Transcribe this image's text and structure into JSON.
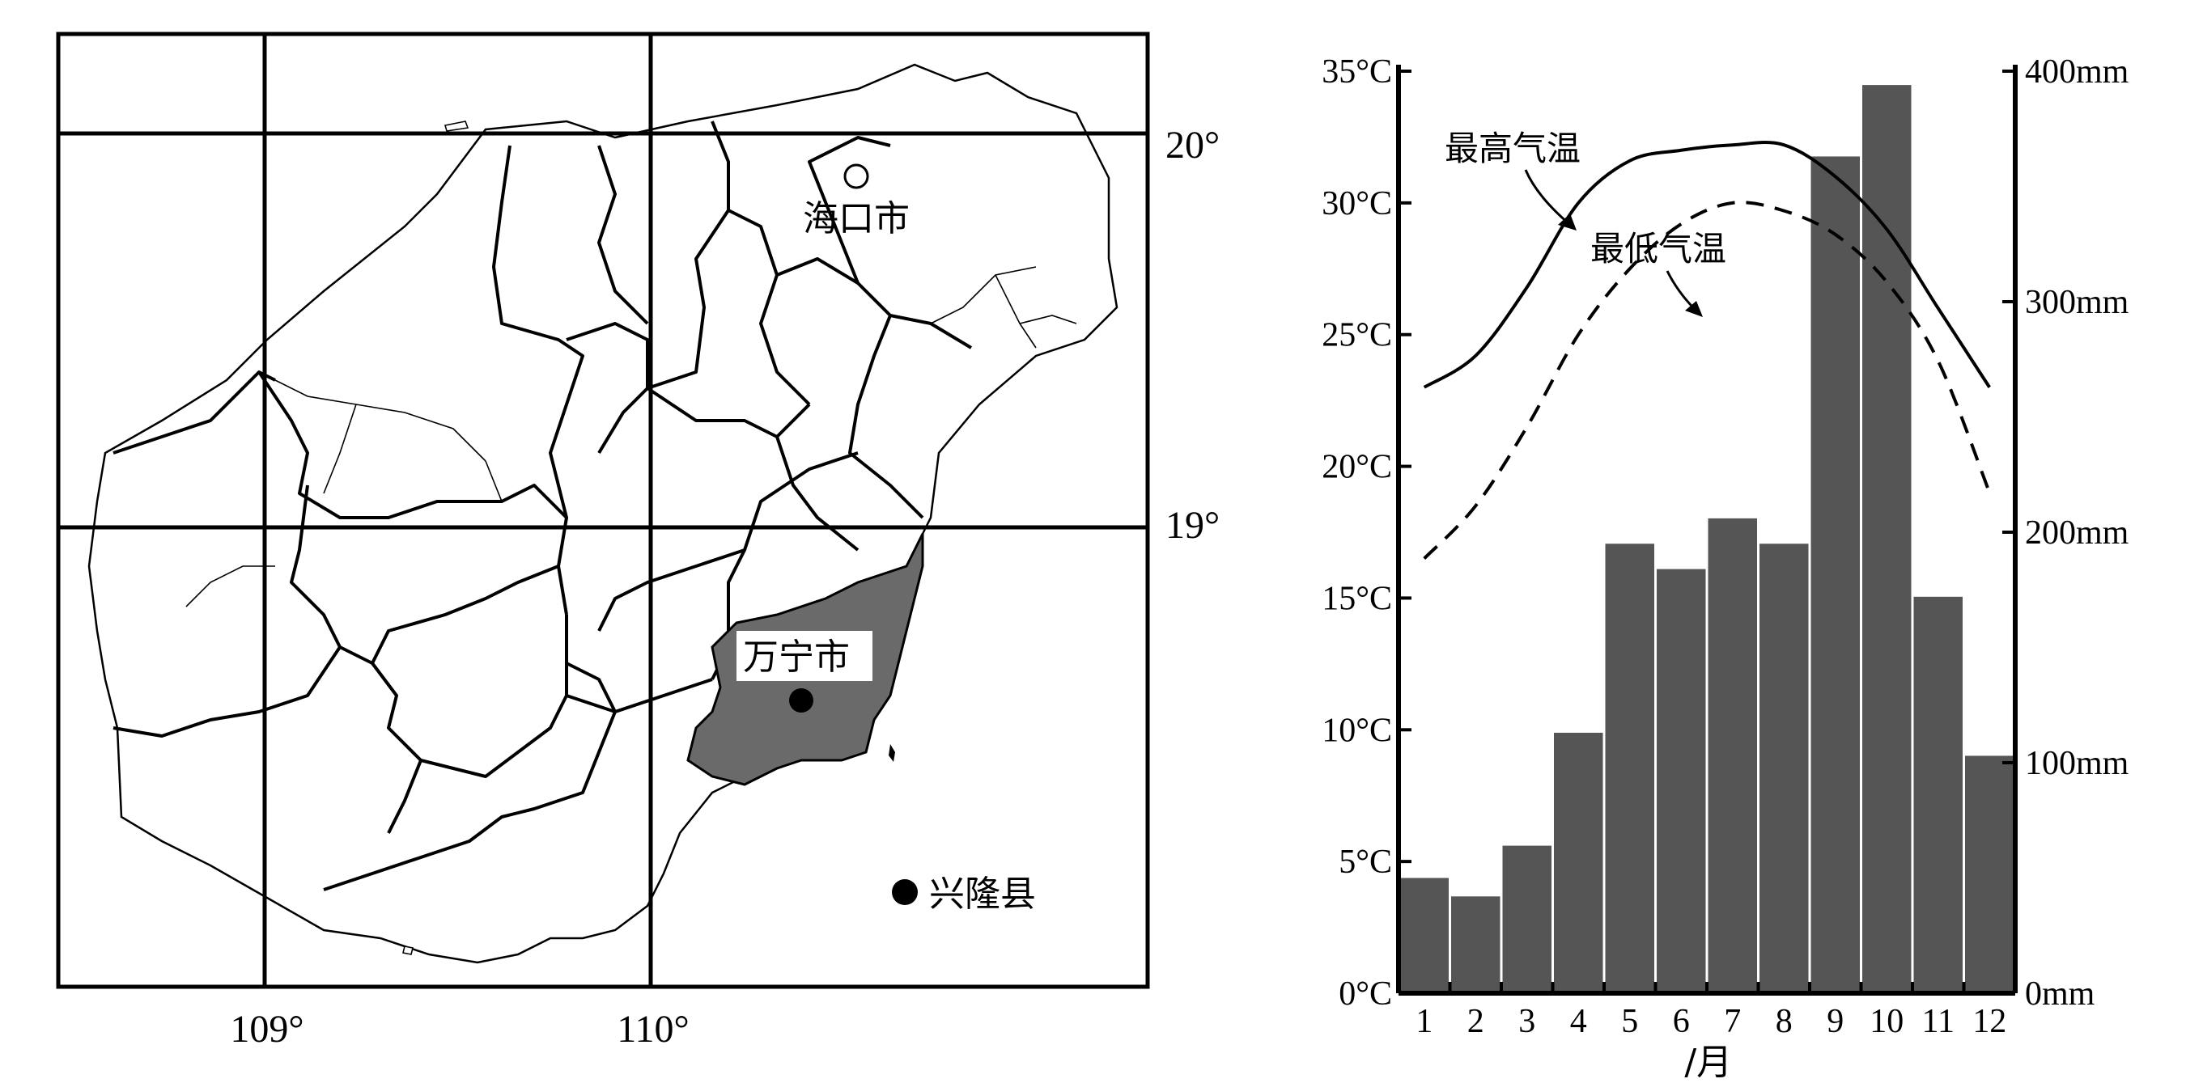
{
  "map": {
    "lon_labels": [
      "109°",
      "110°"
    ],
    "lat_labels": [
      "20°",
      "19°"
    ],
    "cities": {
      "haikou": "海口市",
      "wanning": "万宁市",
      "xinglong": "兴隆县"
    }
  },
  "chart_data": {
    "type": "bar+line",
    "categories": [
      "1",
      "2",
      "3",
      "4",
      "5",
      "6",
      "7",
      "8",
      "9",
      "10",
      "11",
      "12"
    ],
    "xlabel": "/月",
    "precipitation_mm": [
      50,
      42,
      64,
      113,
      195,
      184,
      206,
      195,
      363,
      394,
      172,
      103
    ],
    "series": [
      {
        "name": "最高气温",
        "style": "solid",
        "values": [
          23.0,
          24.2,
          26.8,
          30.0,
          31.6,
          32.0,
          32.2,
          32.2,
          31.0,
          29.0,
          26.0,
          23.0
        ]
      },
      {
        "name": "最低气温",
        "style": "dashed",
        "values": [
          16.5,
          18.5,
          21.5,
          25.0,
          27.5,
          29.2,
          30.0,
          29.7,
          28.8,
          27.0,
          24.0,
          19.0
        ]
      }
    ],
    "y_left": {
      "unit": "°C",
      "ylim": [
        0,
        35
      ],
      "ticks": [
        "0°C",
        "5°C",
        "10°C",
        "15°C",
        "20°C",
        "25°C",
        "30°C",
        "35°C"
      ]
    },
    "y_right": {
      "unit": "mm",
      "ylim": [
        0,
        400
      ],
      "ticks": [
        "0mm",
        "100mm",
        "200mm",
        "300mm",
        "400mm"
      ]
    },
    "bar_color": "#555555"
  }
}
